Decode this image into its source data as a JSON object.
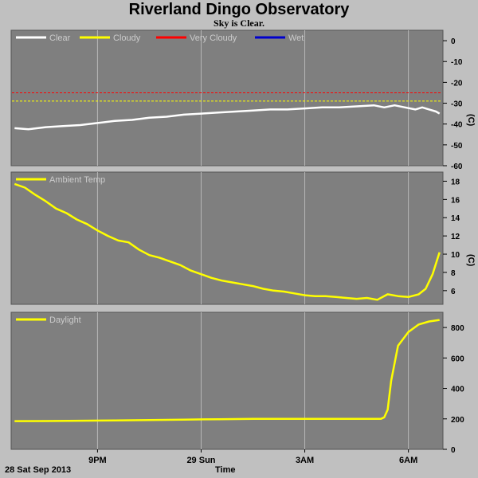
{
  "header": {
    "title": "Riverland Dingo Observatory",
    "subtitle": "Sky is Clear."
  },
  "footer": {
    "date": "28 Sat Sep 2013",
    "xlabel": "Time"
  },
  "colors": {
    "plot_bg": "#7f7f7f",
    "page_bg": "#c0c0c0",
    "grid": "#b8b8b8",
    "clear": "#ffffff",
    "cloudy": "#ffff00",
    "very_cloudy": "#ff0000",
    "wet": "#0000cc",
    "ambient": "#ffff00",
    "daylight": "#ffff00"
  },
  "chart_data": [
    {
      "type": "line",
      "name": "sky-temperature",
      "ylabel": "(C)",
      "ylim": [
        -60,
        5
      ],
      "yticks": [
        0,
        -10,
        -20,
        -30,
        -40,
        -50,
        -60
      ],
      "xlim": [
        18.5,
        31.0
      ],
      "legend": [
        "Clear",
        "Cloudy",
        "Very Cloudy",
        "Wet"
      ],
      "thresholds": [
        {
          "name": "Very Cloudy",
          "value": -25
        },
        {
          "name": "Cloudy",
          "value": -29
        }
      ],
      "series": [
        {
          "name": "Clear",
          "x": [
            18.6,
            19.0,
            19.5,
            20.0,
            20.5,
            21.0,
            21.5,
            22.0,
            22.5,
            23.0,
            23.5,
            24.0,
            24.5,
            25.0,
            25.5,
            26.0,
            26.5,
            27.0,
            27.5,
            28.0,
            28.5,
            29.0,
            29.3,
            29.6,
            29.9,
            30.2,
            30.4,
            30.6,
            30.8,
            30.9
          ],
          "y": [
            -42,
            -42.5,
            -41.5,
            -41,
            -40.5,
            -39.5,
            -38.5,
            -38,
            -37,
            -36.5,
            -35.5,
            -35,
            -34.5,
            -34,
            -33.5,
            -33,
            -33,
            -32.5,
            -32,
            -32,
            -31.5,
            -31,
            -32,
            -31,
            -32,
            -33,
            -32,
            -33,
            -34,
            -35
          ]
        }
      ]
    },
    {
      "type": "line",
      "name": "ambient-temperature",
      "ylabel": "(C)",
      "ylim": [
        4.5,
        19
      ],
      "yticks": [
        18,
        16,
        14,
        12,
        10,
        8,
        6
      ],
      "xlim": [
        18.5,
        31.0
      ],
      "legend": [
        "Ambient Temp"
      ],
      "series": [
        {
          "name": "Ambient Temp",
          "x": [
            18.6,
            18.9,
            19.2,
            19.5,
            19.8,
            20.1,
            20.4,
            20.7,
            21.0,
            21.3,
            21.6,
            21.9,
            22.2,
            22.5,
            22.8,
            23.1,
            23.4,
            23.7,
            24.0,
            24.3,
            24.6,
            24.9,
            25.2,
            25.5,
            25.8,
            26.1,
            26.4,
            26.7,
            27.0,
            27.3,
            27.6,
            27.9,
            28.2,
            28.5,
            28.8,
            29.1,
            29.4,
            29.7,
            30.0,
            30.3,
            30.5,
            30.7,
            30.9
          ],
          "y": [
            17.7,
            17.3,
            16.5,
            15.8,
            15.0,
            14.5,
            13.8,
            13.3,
            12.6,
            12.0,
            11.5,
            11.3,
            10.5,
            9.9,
            9.6,
            9.2,
            8.8,
            8.2,
            7.8,
            7.4,
            7.1,
            6.9,
            6.7,
            6.5,
            6.2,
            6.0,
            5.9,
            5.7,
            5.5,
            5.4,
            5.4,
            5.3,
            5.2,
            5.1,
            5.2,
            5.0,
            5.6,
            5.4,
            5.3,
            5.6,
            6.2,
            7.8,
            10.2
          ]
        }
      ]
    },
    {
      "type": "line",
      "name": "daylight",
      "ylabel": "",
      "ylim": [
        0,
        900
      ],
      "yticks": [
        800,
        600,
        400,
        200,
        0
      ],
      "xlim": [
        18.5,
        31.0
      ],
      "legend": [
        "Daylight"
      ],
      "xticks": [
        {
          "x": 21,
          "label": "9PM"
        },
        {
          "x": 24,
          "label": "29 Sun"
        },
        {
          "x": 27,
          "label": "3AM"
        },
        {
          "x": 30,
          "label": "6AM"
        }
      ],
      "series": [
        {
          "name": "Daylight",
          "x": [
            18.6,
            19.5,
            20.5,
            21.5,
            22.5,
            23.5,
            24.5,
            25.5,
            26.5,
            27.5,
            28.5,
            29.0,
            29.2,
            29.3,
            29.4,
            29.5,
            29.7,
            30.0,
            30.3,
            30.6,
            30.9
          ],
          "y": [
            185,
            186,
            188,
            190,
            192,
            195,
            198,
            200,
            200,
            200,
            200,
            200,
            200,
            210,
            260,
            450,
            680,
            770,
            820,
            840,
            850
          ]
        }
      ]
    }
  ]
}
